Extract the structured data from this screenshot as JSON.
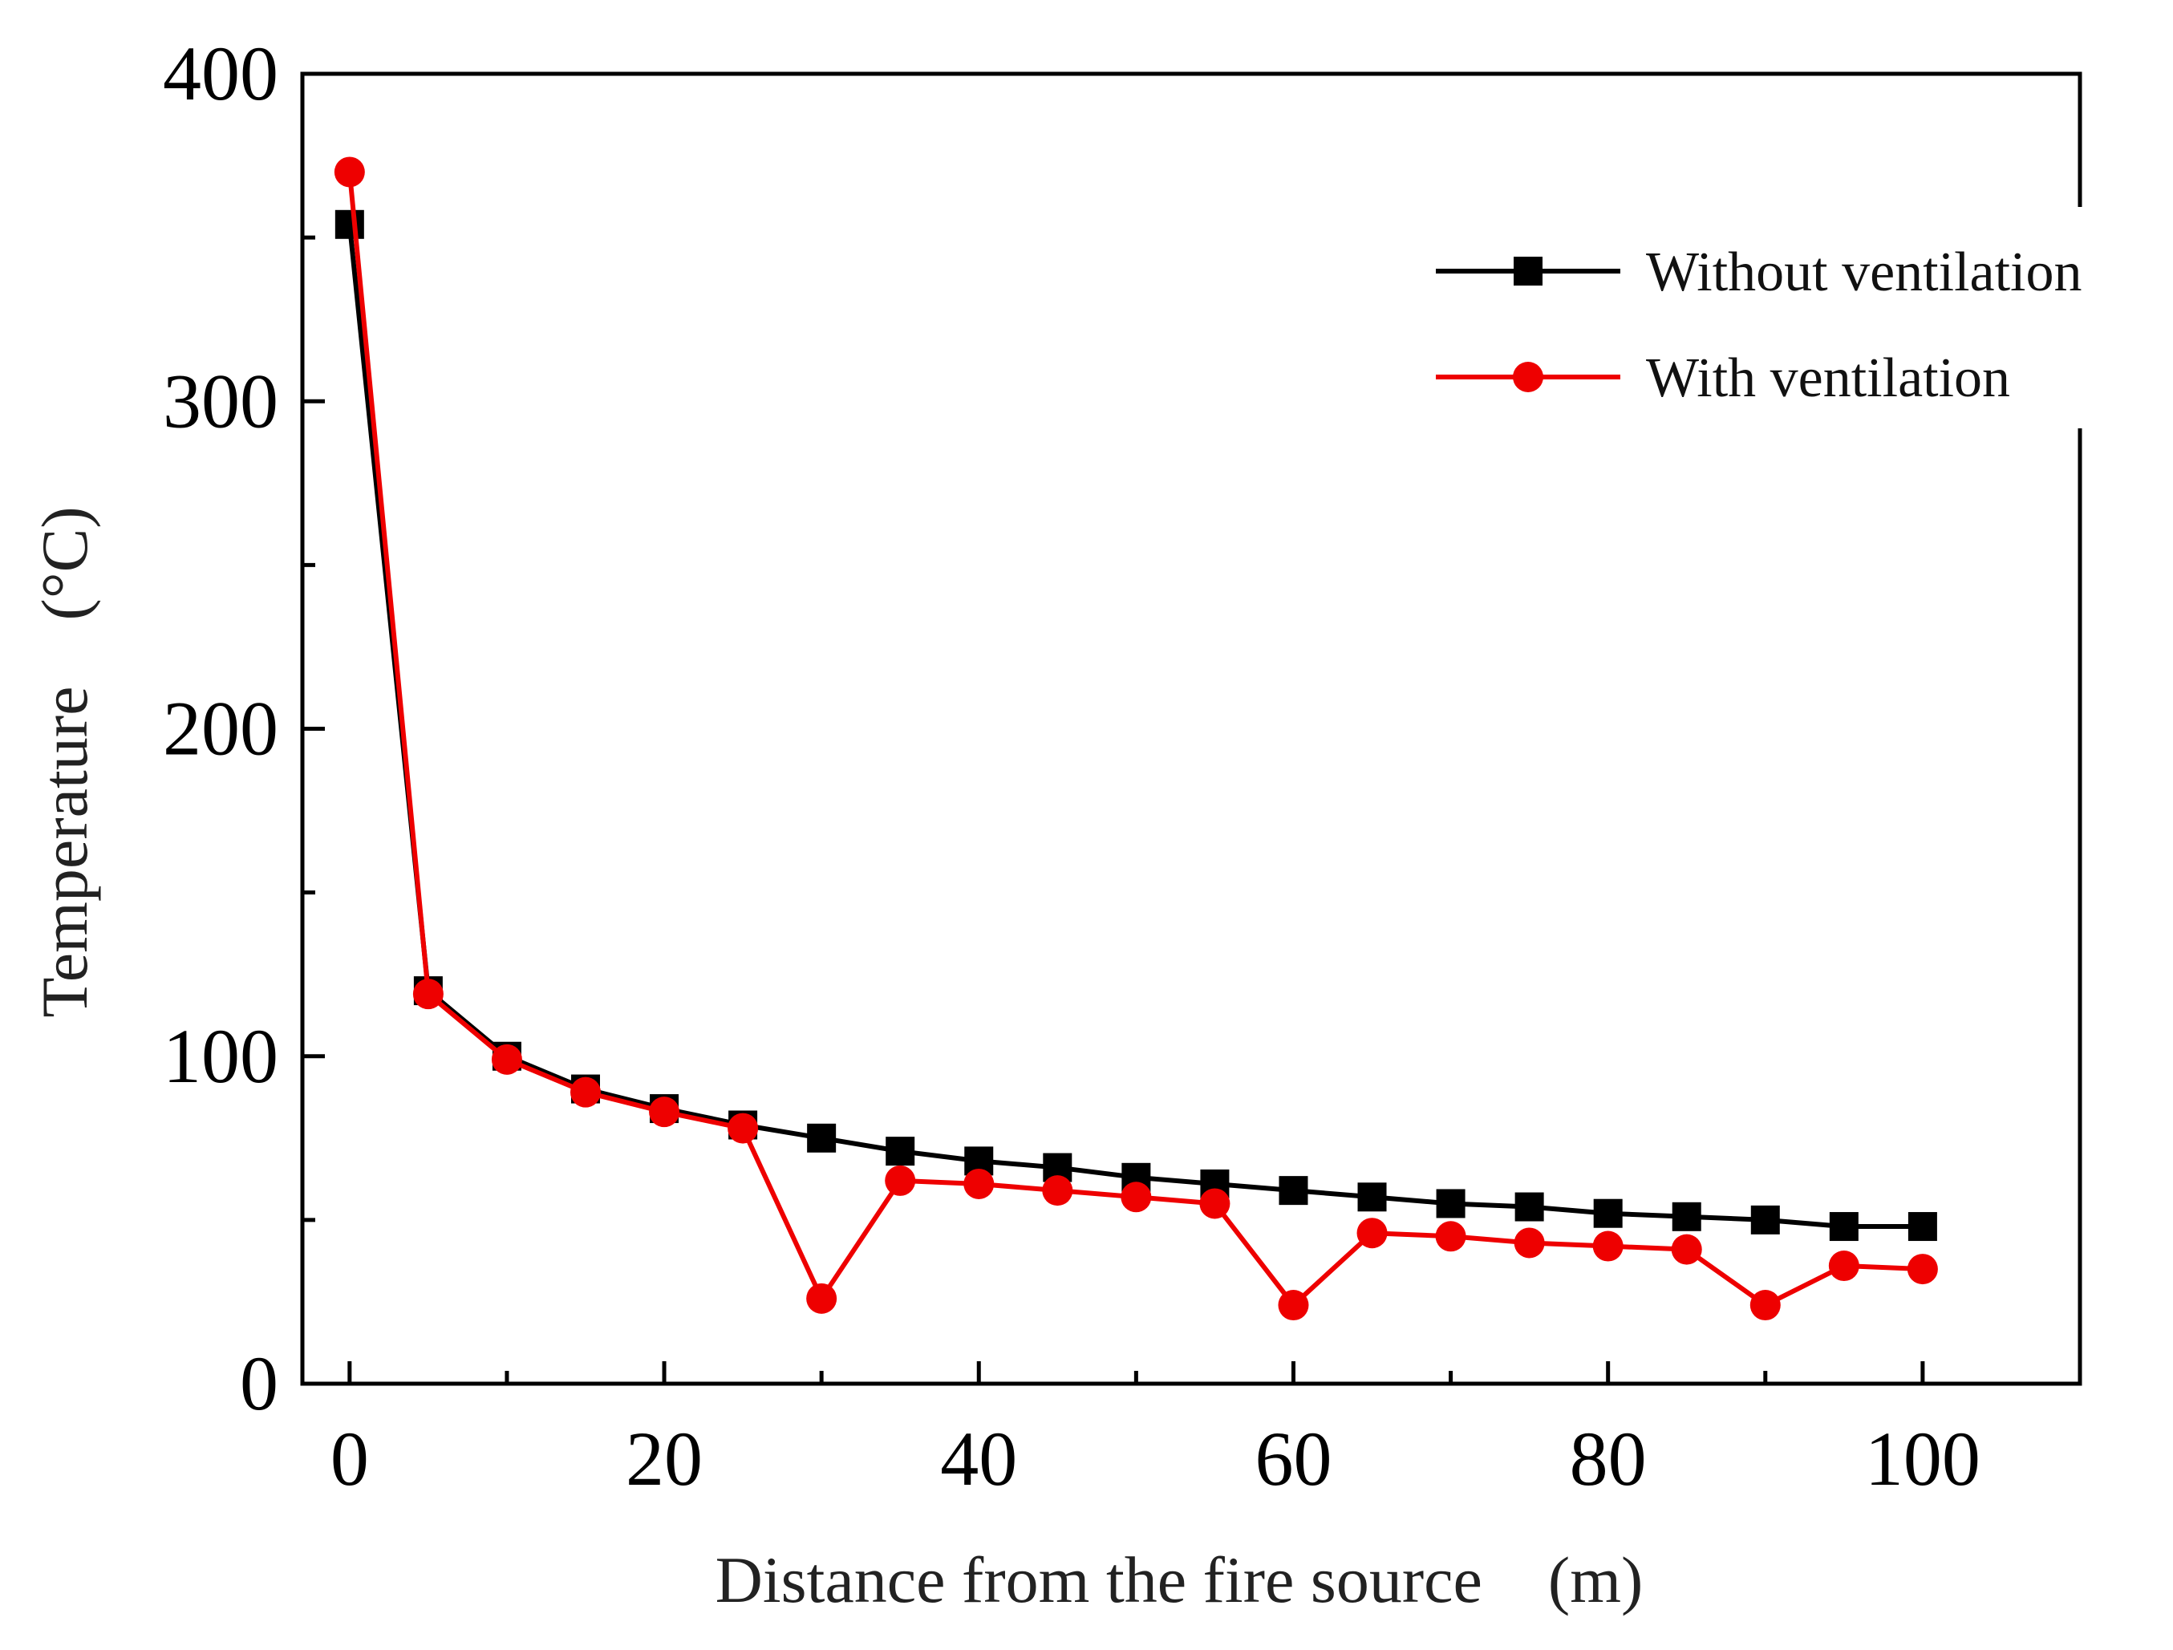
{
  "chart_data": {
    "type": "line",
    "title": "",
    "xlabel": "Distance from the fire source　(m)",
    "ylabel": "Temperature　(°C)",
    "xlim": [
      -3,
      110
    ],
    "ylim": [
      0,
      400
    ],
    "xticks": [
      0,
      20,
      40,
      60,
      80,
      100
    ],
    "yticks": [
      0,
      100,
      200,
      300,
      400
    ],
    "grid": false,
    "legend_position": "top-right",
    "x": [
      0,
      5,
      10,
      15,
      20,
      25,
      30,
      35,
      40,
      45,
      50,
      55,
      60,
      65,
      70,
      75,
      80,
      85,
      90,
      95,
      100
    ],
    "series": [
      {
        "name": "Without ventilation",
        "color": "#000000",
        "marker": "square",
        "values": [
          354,
          120,
          100,
          90,
          84,
          79,
          75,
          71,
          68,
          66,
          63,
          61,
          59,
          57,
          55,
          54,
          52,
          51,
          50,
          48,
          48
        ]
      },
      {
        "name": "With ventilation",
        "color": "#ee0000",
        "marker": "circle",
        "values": [
          370,
          119,
          99,
          89,
          83,
          78,
          26,
          62,
          61,
          59,
          57,
          55,
          24,
          46,
          45,
          43,
          42,
          41,
          24,
          36,
          35
        ]
      }
    ]
  }
}
